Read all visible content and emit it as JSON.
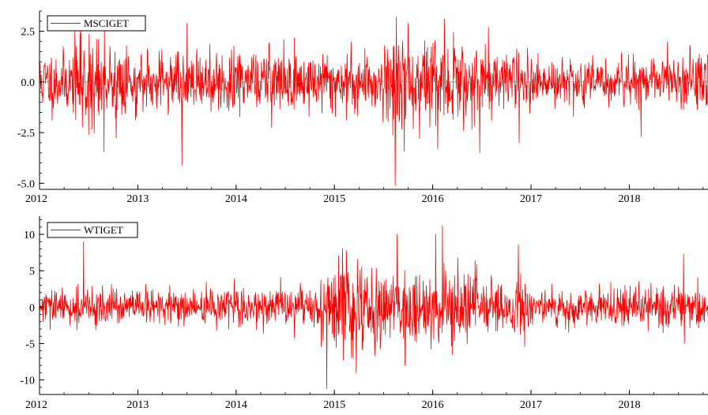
{
  "chart_data": [
    {
      "type": "line",
      "series": [
        {
          "name": "MSCIGET",
          "color": "#ff0000",
          "seed": 11,
          "base_sd": 0.75,
          "vol_regimes": [
            [
              2012.0,
              1.0
            ],
            [
              2012.35,
              1.45
            ],
            [
              2012.8,
              1.0
            ],
            [
              2015.5,
              1.6
            ],
            [
              2016.45,
              1.1
            ],
            [
              2017.0,
              0.75
            ],
            [
              2018.6,
              1.05
            ]
          ],
          "spikes": [
            {
              "x": 2012.42,
              "y": 2.9
            },
            {
              "x": 2012.5,
              "y": -2.6
            },
            {
              "x": 2012.66,
              "y": 2.7
            },
            {
              "x": 2013.45,
              "y": -4.1
            },
            {
              "x": 2013.5,
              "y": 2.9
            },
            {
              "x": 2015.62,
              "y": -5.1
            },
            {
              "x": 2015.63,
              "y": 3.2
            },
            {
              "x": 2015.75,
              "y": 2.9
            },
            {
              "x": 2016.05,
              "y": -3.3
            },
            {
              "x": 2016.12,
              "y": 3.1
            },
            {
              "x": 2016.48,
              "y": -3.5
            },
            {
              "x": 2016.88,
              "y": -3.0
            },
            {
              "x": 2018.12,
              "y": -2.7
            }
          ]
        }
      ],
      "x_ticks": [
        "2012",
        "2013",
        "2014",
        "2015",
        "2016",
        "2017",
        "2018"
      ],
      "y_ticks": [
        "2.5",
        "0.0",
        "-2.5",
        "-5.0"
      ],
      "xlim": [
        2012.0,
        2018.8
      ],
      "ylim": [
        -5.3,
        3.5
      ],
      "y_tick_values": [
        2.5,
        0.0,
        -2.5,
        -5.0
      ],
      "legend_position": "top-left",
      "zero_line": true
    },
    {
      "type": "line",
      "series": [
        {
          "name": "WTIGET",
          "color": "#ff0000",
          "seed": 29,
          "base_sd": 1.2,
          "vol_regimes": [
            [
              2012.0,
              1.0
            ],
            [
              2014.55,
              1.3
            ],
            [
              2014.85,
              2.6
            ],
            [
              2015.5,
              2.3
            ],
            [
              2016.45,
              1.5
            ],
            [
              2017.0,
              1.05
            ],
            [
              2018.6,
              1.2
            ]
          ],
          "spikes": [
            {
              "x": 2012.45,
              "y": 9.0
            },
            {
              "x": 2014.92,
              "y": -11.2
            },
            {
              "x": 2015.08,
              "y": 8.0
            },
            {
              "x": 2015.22,
              "y": -9.0
            },
            {
              "x": 2015.64,
              "y": 10.0
            },
            {
              "x": 2015.72,
              "y": -8.0
            },
            {
              "x": 2016.03,
              "y": 10.0
            },
            {
              "x": 2016.1,
              "y": 11.2
            },
            {
              "x": 2016.2,
              "y": -6.5
            },
            {
              "x": 2016.87,
              "y": 8.6
            },
            {
              "x": 2018.55,
              "y": 7.3
            },
            {
              "x": 2018.56,
              "y": -5.0
            }
          ]
        }
      ],
      "x_ticks": [
        "2012",
        "2013",
        "2014",
        "2015",
        "2016",
        "2017",
        "2018"
      ],
      "y_ticks": [
        "10",
        "5",
        "0",
        "-5",
        "-10"
      ],
      "xlim": [
        2012.0,
        2018.8
      ],
      "ylim": [
        -12.0,
        12.5
      ],
      "y_tick_values": [
        10,
        5,
        0,
        -5,
        -10
      ],
      "legend_position": "top-left",
      "zero_line": false
    }
  ]
}
